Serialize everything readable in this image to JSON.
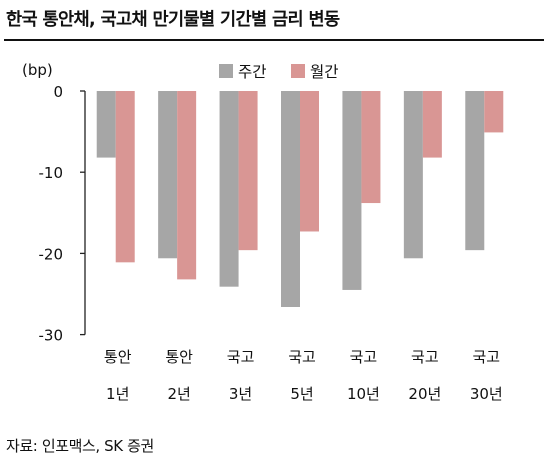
{
  "title": "한국 통안채, 국고채 만기물별 기간별 금리 변동",
  "source": "자료: 인포맥스, SK 증권",
  "chart_data": {
    "type": "bar",
    "unit": "(bp)",
    "categories": [
      {
        "line1": "통안",
        "line2": "1년"
      },
      {
        "line1": "통안",
        "line2": "2년"
      },
      {
        "line1": "국고",
        "line2": "3년"
      },
      {
        "line1": "국고",
        "line2": "5년"
      },
      {
        "line1": "국고",
        "line2": "10년"
      },
      {
        "line1": "국고",
        "line2": "20년"
      },
      {
        "line1": "국고",
        "line2": "30년"
      }
    ],
    "series": [
      {
        "name": "주간",
        "color": "#a6a6a6",
        "values": [
          -8.2,
          -20.6,
          -24.1,
          -26.6,
          -24.5,
          -20.6,
          -19.6
        ]
      },
      {
        "name": "월간",
        "color": "#d99694",
        "values": [
          -21.1,
          -23.2,
          -19.6,
          -17.3,
          -13.8,
          -8.2,
          -5.1
        ]
      }
    ],
    "ylim": [
      -30,
      0
    ],
    "yticks": [
      0,
      -10,
      -20,
      -30
    ],
    "ytick_labels": [
      "0",
      "-10",
      "-20",
      "-30"
    ],
    "legend_position": "top",
    "grid": false
  }
}
